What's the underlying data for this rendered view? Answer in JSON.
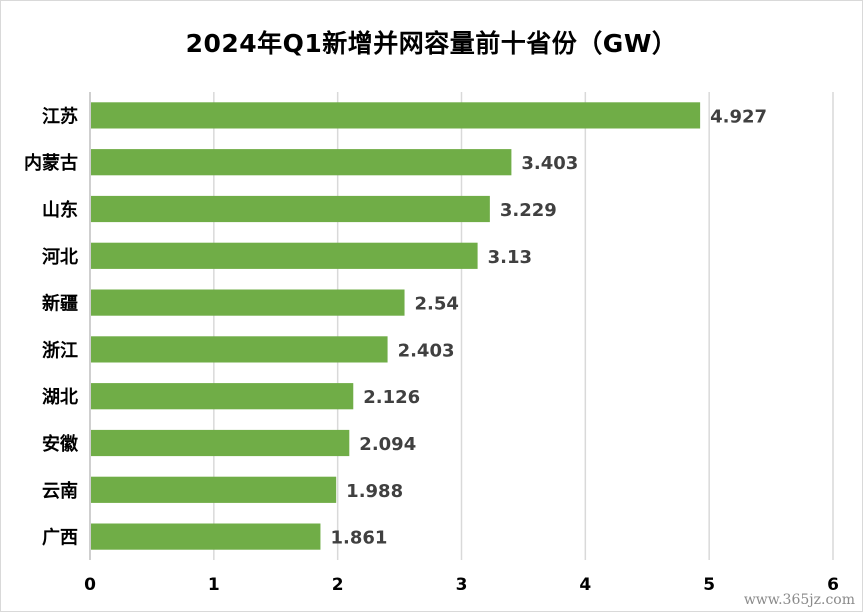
{
  "watermark": "www.365jz.com",
  "chart_data": {
    "type": "bar",
    "orientation": "horizontal",
    "title": "2024年Q1新增并网容量前十省份（GW）",
    "categories": [
      "江苏",
      "内蒙古",
      "山东",
      "河北",
      "新疆",
      "浙江",
      "湖北",
      "安徽",
      "云南",
      "广西"
    ],
    "values": [
      4.927,
      3.403,
      3.229,
      3.13,
      2.54,
      2.403,
      2.126,
      2.094,
      1.988,
      1.861
    ],
    "value_labels": [
      "4.927",
      "3.403",
      "3.229",
      "3.13",
      "2.54",
      "2.403",
      "2.126",
      "2.094",
      "1.988",
      "1.861"
    ],
    "xlim": [
      0,
      6
    ],
    "xticks": [
      "0",
      "1",
      "2",
      "3",
      "4",
      "5",
      "6"
    ],
    "grid": true,
    "legend": "none",
    "bar_color": "#70ad47",
    "grid_color": "#d9d9d9",
    "label_color": "#404040"
  }
}
